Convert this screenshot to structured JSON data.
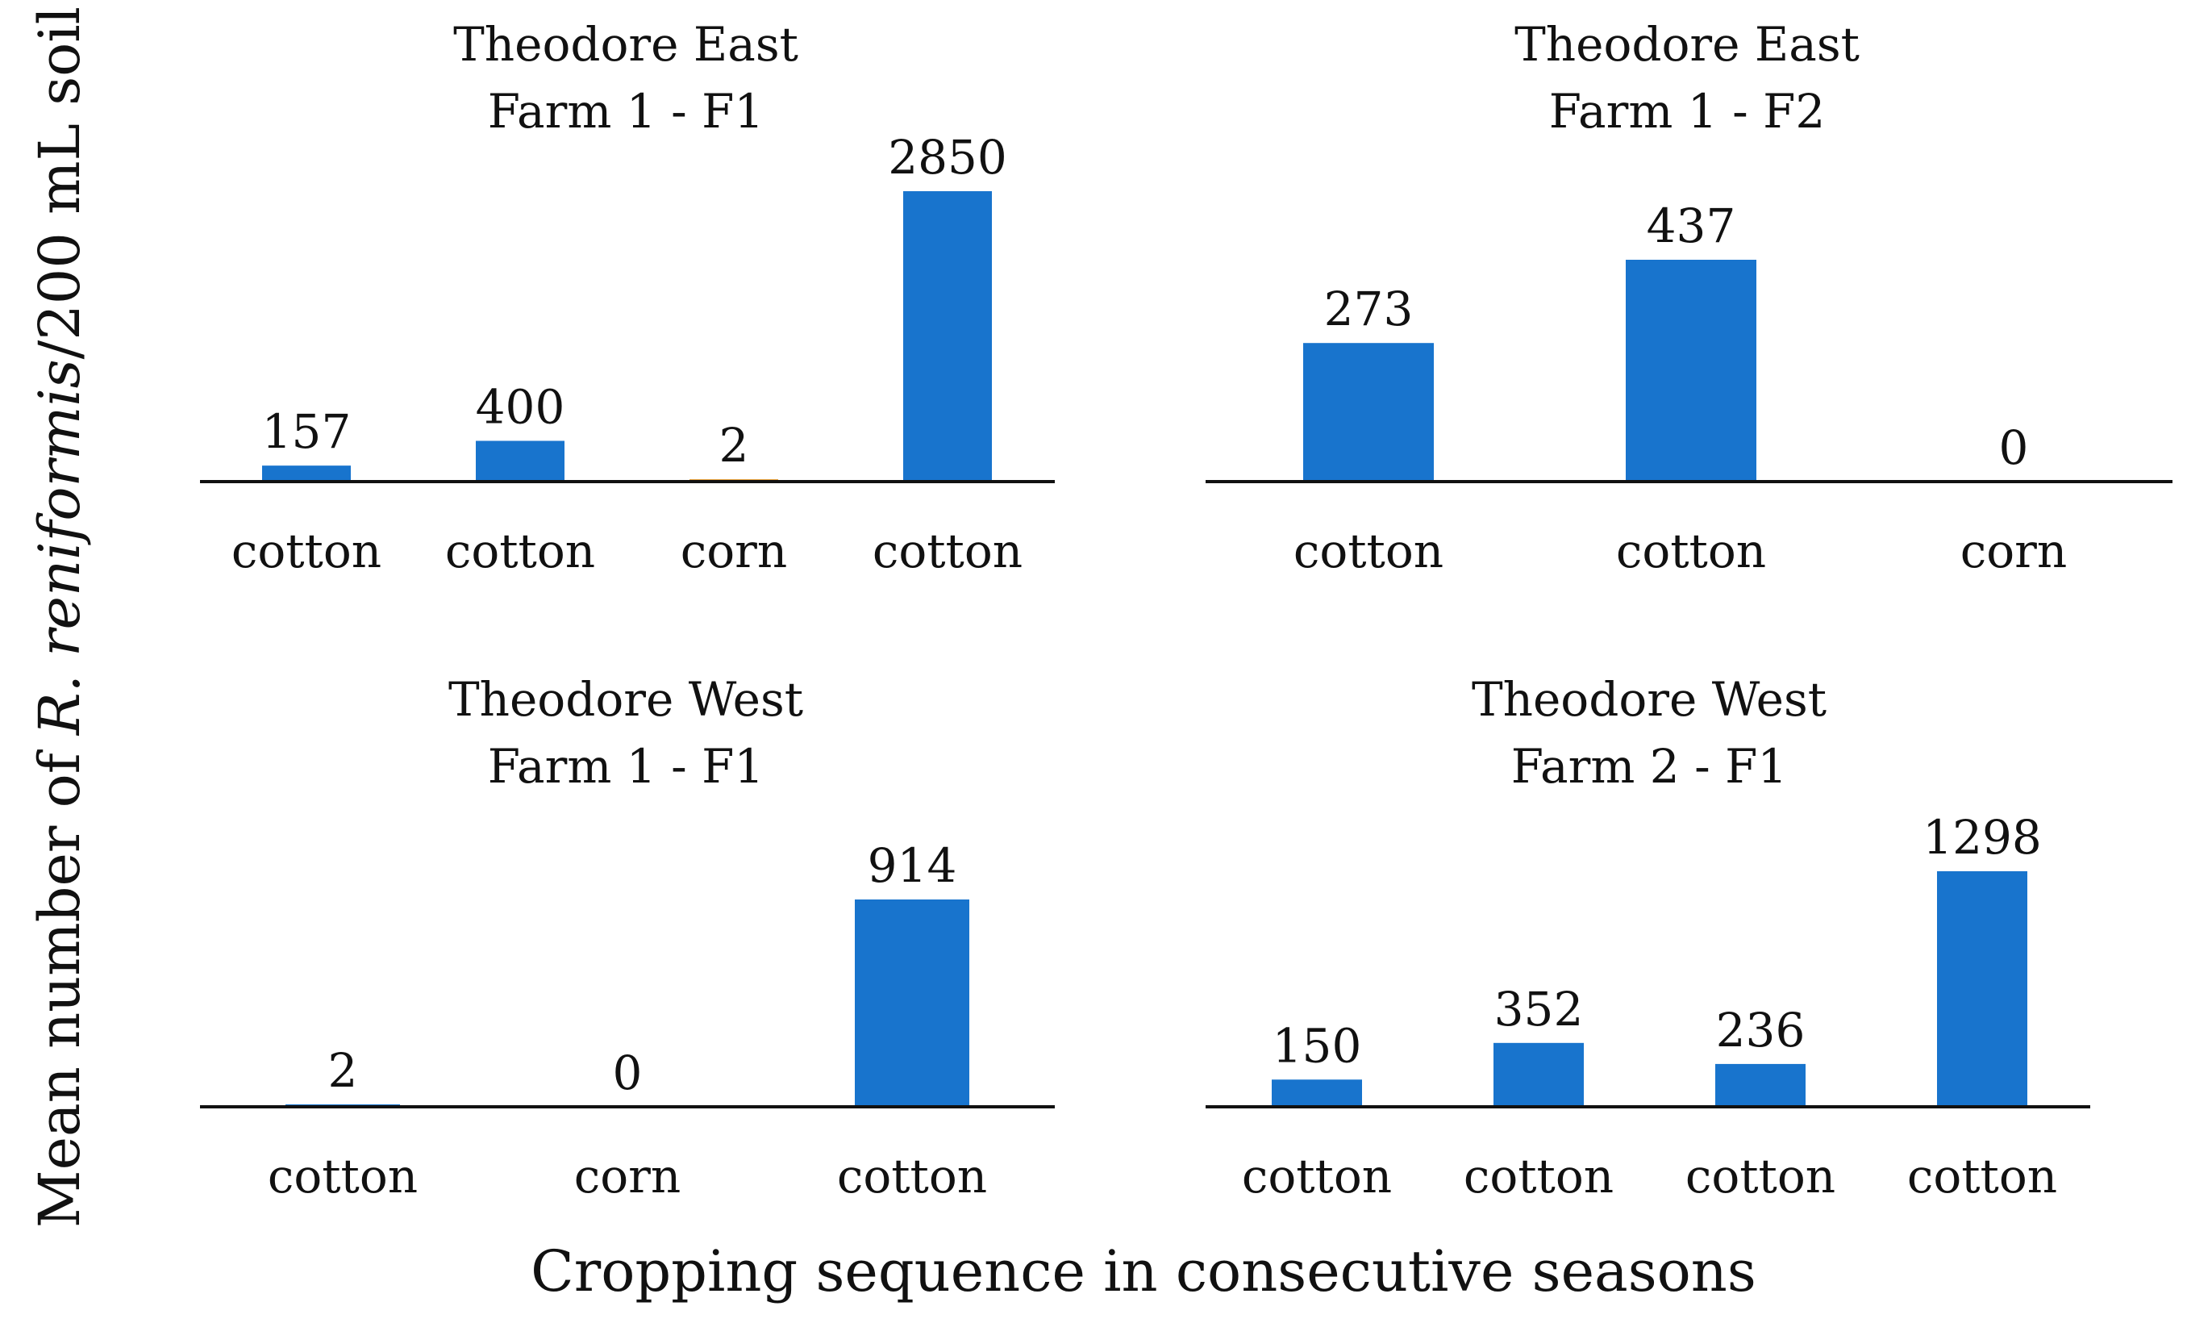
{
  "figure": {
    "ylabel_prefix": "Mean number of ",
    "ylabel_italic": "R. reniformis",
    "ylabel_suffix": "/200 mL soil",
    "xlabel": "Cropping sequence in consecutive seasons"
  },
  "colors": {
    "bar": "#1874CD",
    "axis": "#111111"
  },
  "chart_data": [
    {
      "type": "bar",
      "title_line1": "Theodore East",
      "title_line2": "Farm 1 - F1",
      "categories": [
        "cotton",
        "cotton",
        "corn",
        "cotton"
      ],
      "values": [
        157,
        400,
        2,
        2850
      ],
      "ylim": [
        0,
        2850
      ]
    },
    {
      "type": "bar",
      "title_line1": "Theodore East",
      "title_line2": "Farm 1 - F2",
      "categories": [
        "cotton",
        "cotton",
        "corn"
      ],
      "values": [
        273,
        437,
        0
      ],
      "ylim": [
        0,
        437
      ]
    },
    {
      "type": "bar",
      "title_line1": "Theodore West",
      "title_line2": "Farm 1 - F1",
      "categories": [
        "cotton",
        "corn",
        "cotton"
      ],
      "values": [
        2,
        0,
        914
      ],
      "ylim": [
        0,
        914
      ]
    },
    {
      "type": "bar",
      "title_line1": "Theodore West",
      "title_line2": "Farm 2 - F1",
      "categories": [
        "cotton",
        "cotton",
        "cotton",
        "cotton"
      ],
      "values": [
        150,
        352,
        236,
        1298
      ],
      "ylim": [
        0,
        1298
      ]
    }
  ]
}
